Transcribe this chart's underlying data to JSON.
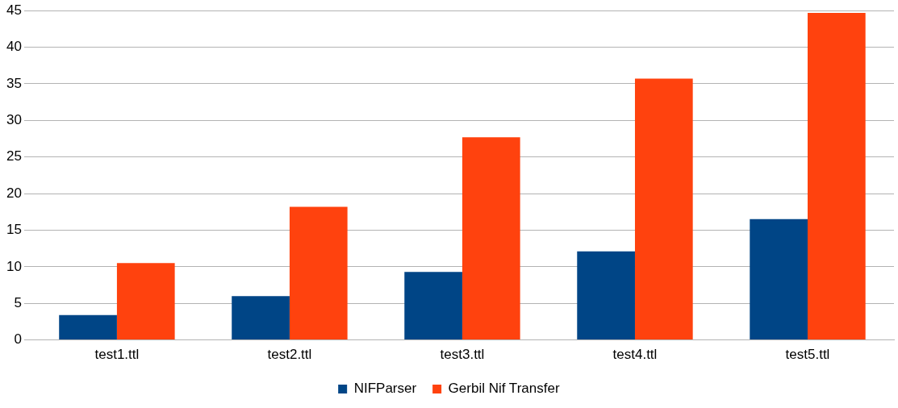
{
  "chart_data": {
    "type": "bar",
    "categories": [
      "test1.ttl",
      "test2.ttl",
      "test3.ttl",
      "test4.ttl",
      "test5.ttl"
    ],
    "series": [
      {
        "name": "NIFParser",
        "color": "#004586",
        "values": [
          3.4,
          6.0,
          9.3,
          12.1,
          16.5
        ]
      },
      {
        "name": "Gerbil Nif Transfer",
        "color": "#ff420e",
        "values": [
          10.5,
          18.2,
          27.7,
          35.7,
          44.7
        ]
      }
    ],
    "ylim": [
      0,
      45
    ],
    "yticks": [
      0,
      5,
      10,
      15,
      20,
      25,
      30,
      35,
      40,
      45
    ],
    "grid": "y",
    "legend": "bottom"
  }
}
